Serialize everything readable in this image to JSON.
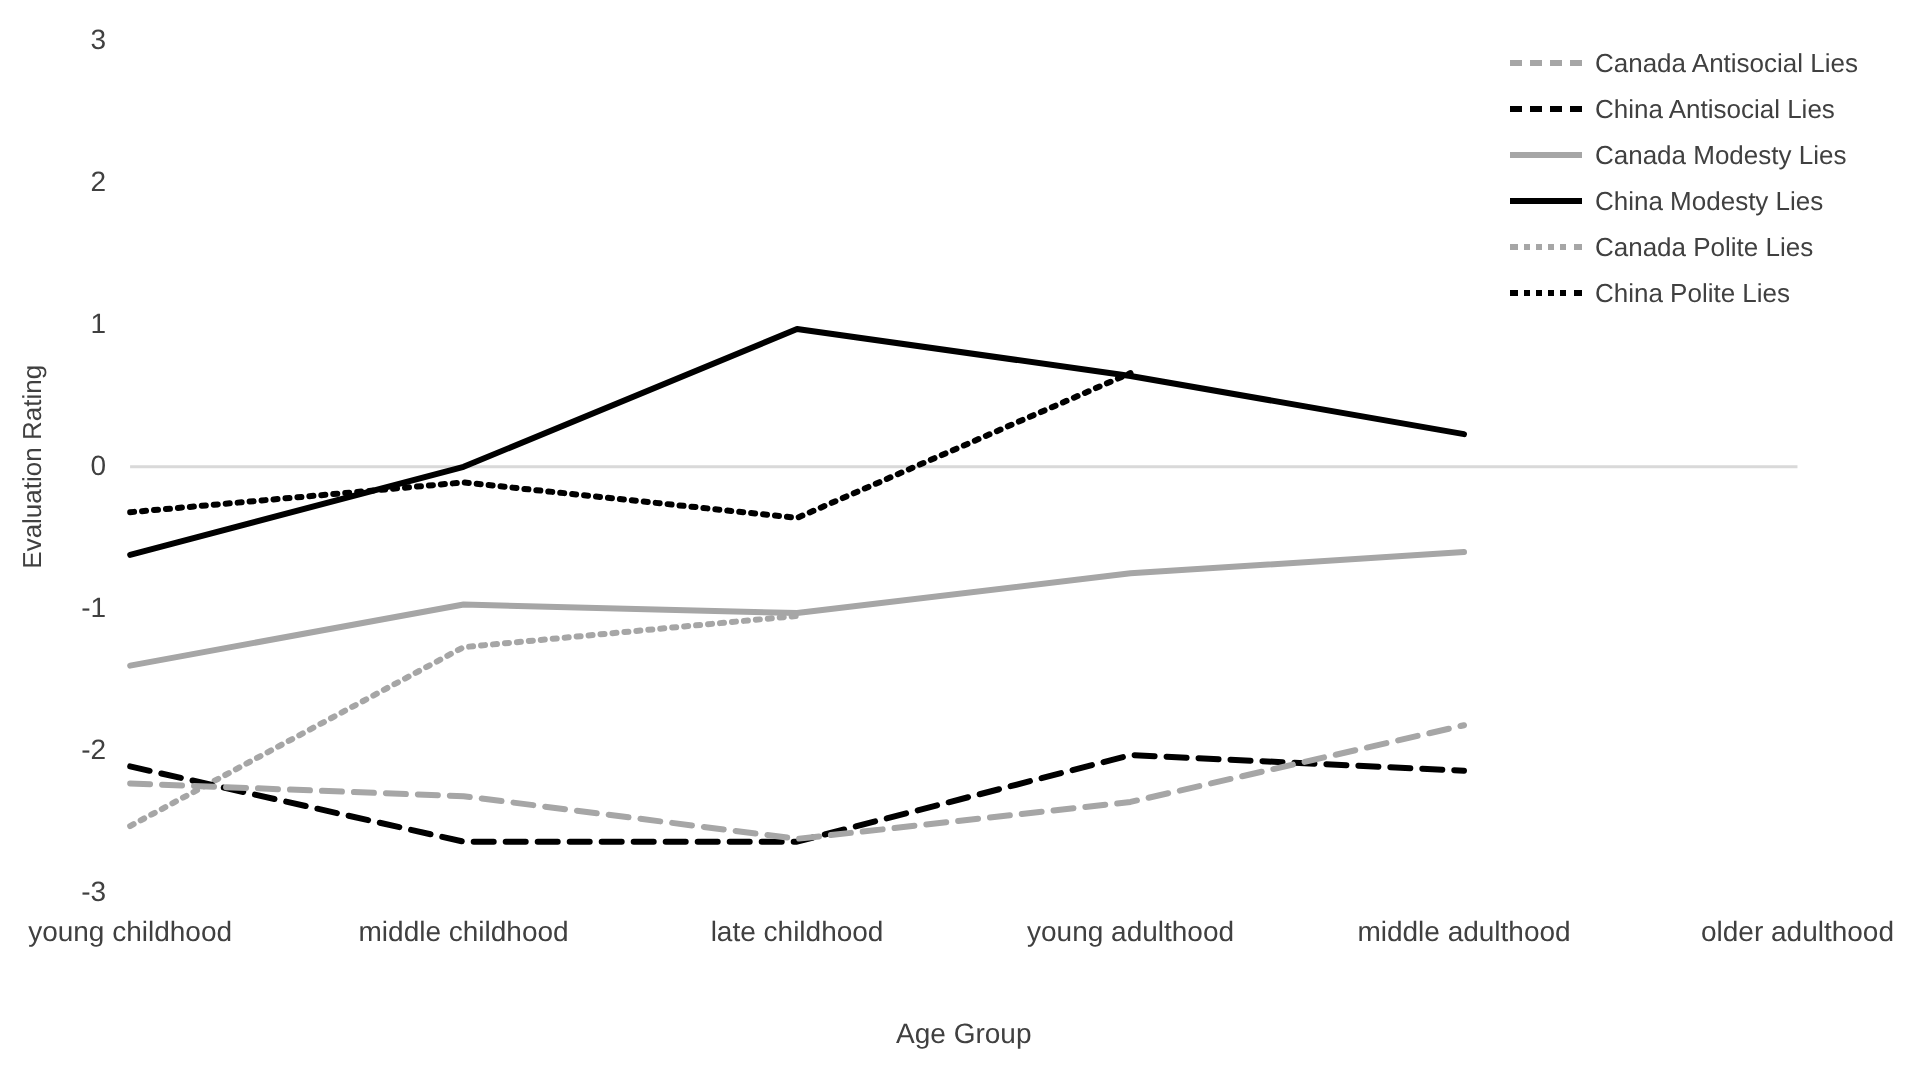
{
  "chart_data": {
    "type": "line",
    "xlabel": "Age Group",
    "ylabel": "Evaluation Rating",
    "categories": [
      "young childhood",
      "middle childhood",
      "late childhood",
      "young adulthood",
      "middle adulthood",
      "older adulthood"
    ],
    "ylim": [
      -3,
      3
    ],
    "yticks": [
      -3,
      -2,
      -1,
      0,
      1,
      2,
      3
    ],
    "grid": false,
    "legend": "top right",
    "marker": "none",
    "ref_lines": [
      {
        "axis": "y",
        "value": 0,
        "color": "#d9d9d9"
      }
    ],
    "series": [
      {
        "name": "Canada Antisocial Lies",
        "color": "#a6a6a6",
        "line_style": "dashed",
        "values": [
          -2.23,
          -2.32,
          -2.62,
          -2.36,
          -1.82,
          null
        ]
      },
      {
        "name": "China Antisocial Lies",
        "color": "#000000",
        "line_style": "dashed",
        "values": [
          -2.11,
          -2.64,
          -2.64,
          -2.03,
          -2.14,
          null
        ]
      },
      {
        "name": "Canada Modesty Lies",
        "color": "#a6a6a6",
        "line_style": "solid",
        "values": [
          -1.4,
          -0.97,
          -1.03,
          -0.75,
          -0.6,
          null
        ]
      },
      {
        "name": "China Modesty Lies",
        "color": "#000000",
        "line_style": "solid",
        "values": [
          -0.62,
          0.0,
          0.97,
          0.64,
          0.23,
          null
        ]
      },
      {
        "name": "Canada Polite Lies",
        "color": "#a6a6a6",
        "line_style": "dotted",
        "values": [
          -2.53,
          -1.27,
          -1.05,
          null,
          null,
          null
        ]
      },
      {
        "name": "China Polite Lies",
        "color": "#000000",
        "line_style": "dotted",
        "values": [
          -0.32,
          -0.11,
          -0.36,
          0.66,
          null,
          null
        ]
      }
    ]
  }
}
